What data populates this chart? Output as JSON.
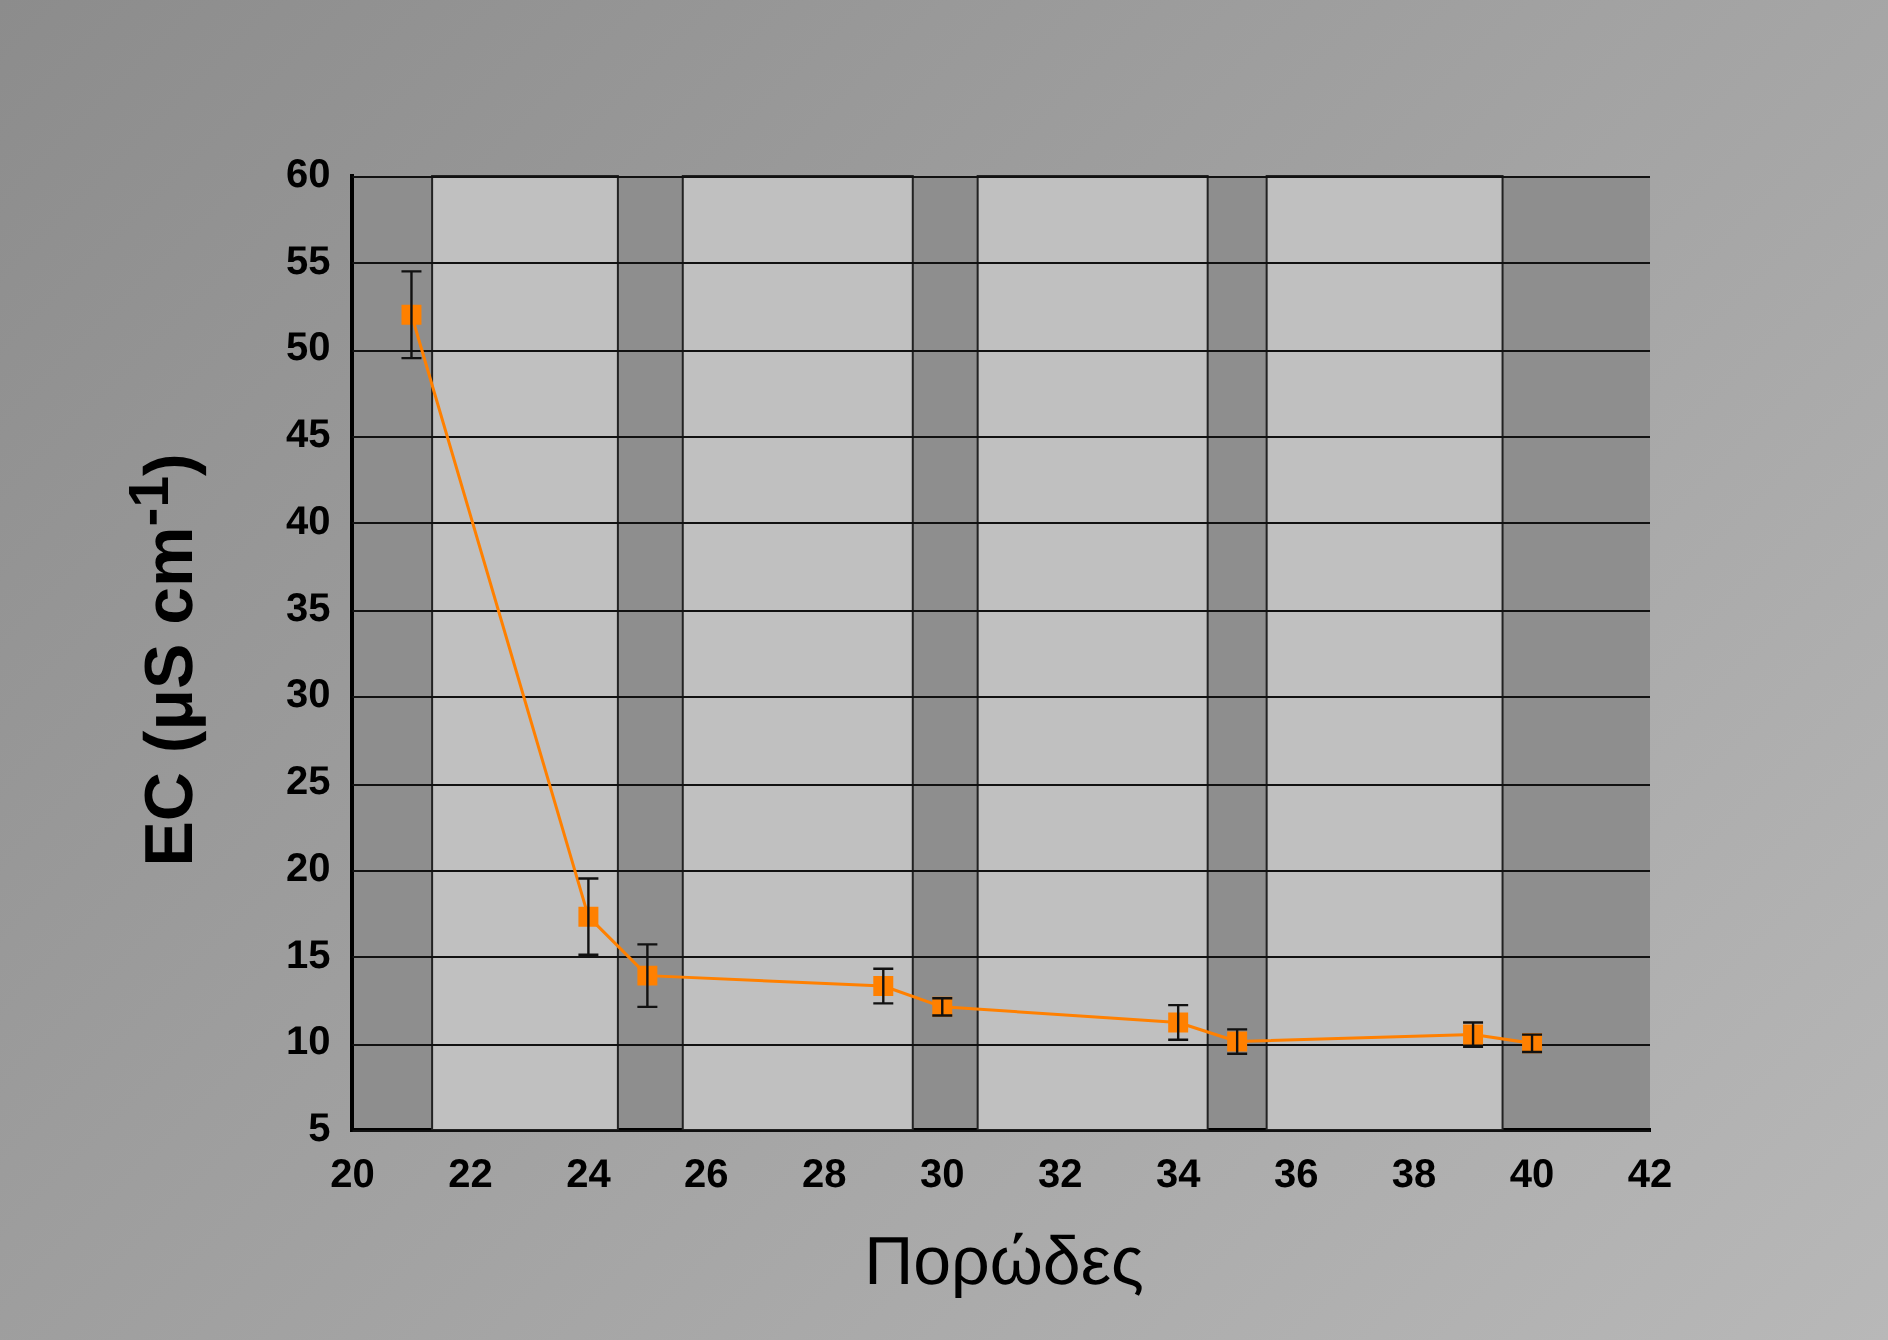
{
  "chart_data": {
    "type": "line",
    "xlabel": "Πορώδες",
    "ylabel": "EC (μS cm$^{-1}$)",
    "x": [
      21,
      24,
      25,
      29,
      30,
      34,
      35,
      39,
      40
    ],
    "series": [
      {
        "color": "#ff8000",
        "values": [
          52,
          17.3,
          13.9,
          13.3,
          12.1,
          11.2,
          10.1,
          10.5,
          10
        ],
        "errors": [
          2.5,
          2.2,
          1.8,
          1,
          0.5,
          1,
          0.7,
          0.7,
          0.5
        ]
      }
    ],
    "xlim": [
      20,
      42
    ],
    "xticks": [
      20,
      22,
      24,
      26,
      28,
      30,
      32,
      34,
      36,
      38,
      40,
      42
    ],
    "ylim": [
      5,
      60
    ],
    "yticks": [
      5,
      10,
      15,
      20,
      25,
      30,
      35,
      40,
      45,
      50,
      55,
      60
    ],
    "bands": [
      {
        "axis": "x",
        "from": 21.35,
        "to": 24.5,
        "color": "#c0c0c0"
      },
      {
        "axis": "x",
        "from": 25.6,
        "to": 29.5,
        "color": "#c0c0c0"
      },
      {
        "axis": "x",
        "from": 30.6,
        "to": 34.5,
        "color": "#c0c0c0"
      },
      {
        "axis": "x",
        "from": 35.5,
        "to": 39.5,
        "color": "#c0c0c0"
      }
    ],
    "grid": "y",
    "legend": false,
    "marker": "square",
    "line_style": "solid"
  }
}
